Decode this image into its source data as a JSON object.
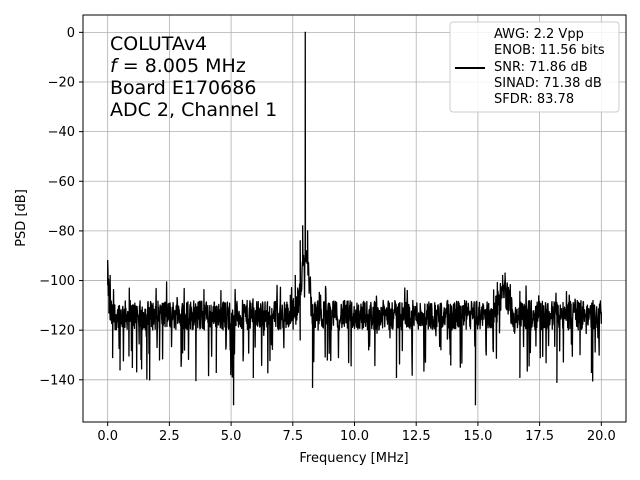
{
  "chart_data": {
    "type": "line",
    "title": "",
    "xlabel": "Frequency [MHz]",
    "ylabel": "PSD [dB]",
    "xlim": [
      -1.0,
      21.0
    ],
    "ylim": [
      -157,
      7
    ],
    "xticks": [
      0.0,
      2.5,
      5.0,
      7.5,
      10.0,
      12.5,
      15.0,
      17.5,
      20.0
    ],
    "xtick_labels": [
      "0.0",
      "2.5",
      "5.0",
      "7.5",
      "10.0",
      "12.5",
      "15.0",
      "17.5",
      "20.0"
    ],
    "yticks": [
      0,
      -20,
      -40,
      -60,
      -80,
      -100,
      -120,
      -140
    ],
    "ytick_labels": [
      "0",
      "−20",
      "−40",
      "−60",
      "−80",
      "−100",
      "−120",
      "−140"
    ],
    "grid": true,
    "legend_position": "top-right",
    "line_color": "#000000",
    "annotation": {
      "line1": "COLUTAv4",
      "line2_var": "f",
      "line2_rest": " = 8.005 MHz",
      "line3": "Board E170686",
      "line4": "ADC 2, Channel 1"
    },
    "legend": {
      "lines": [
        "AWG: 2.2 Vpp",
        "ENOB: 11.56 bits",
        "SNR: 71.86 dB",
        "SINAD: 71.38 dB",
        "SFDR: 83.78"
      ]
    },
    "series": [
      {
        "noise_floor_db": -114,
        "noise_low_db": -150,
        "noise_high_db": -93,
        "points": [
          [
            0.0,
            -92
          ],
          [
            0.05,
            -113
          ],
          [
            0.1,
            -98
          ],
          [
            0.2,
            -131
          ],
          [
            0.4,
            -112
          ],
          [
            0.5,
            -136
          ],
          [
            1.0,
            -135
          ],
          [
            1.7,
            -140
          ],
          [
            2.1,
            -132
          ],
          [
            4.4,
            -137
          ],
          [
            5.1,
            -150
          ],
          [
            5.9,
            -139
          ],
          [
            7.4,
            -106
          ],
          [
            7.6,
            -98
          ],
          [
            7.8,
            -84
          ],
          [
            7.9,
            -78
          ],
          [
            8.005,
            0
          ],
          [
            8.1,
            -80
          ],
          [
            8.2,
            -100
          ],
          [
            8.3,
            -143
          ],
          [
            8.5,
            -116
          ],
          [
            8.9,
            -132
          ],
          [
            11.7,
            -139
          ],
          [
            13.9,
            -134
          ],
          [
            14.9,
            -150
          ],
          [
            15.5,
            -119
          ],
          [
            15.8,
            -106
          ],
          [
            16.0,
            -98
          ],
          [
            16.1,
            -97
          ],
          [
            16.3,
            -108
          ],
          [
            16.7,
            -139
          ],
          [
            18.2,
            -141
          ],
          [
            19.6,
            -137
          ],
          [
            20.0,
            -113
          ]
        ]
      }
    ]
  }
}
